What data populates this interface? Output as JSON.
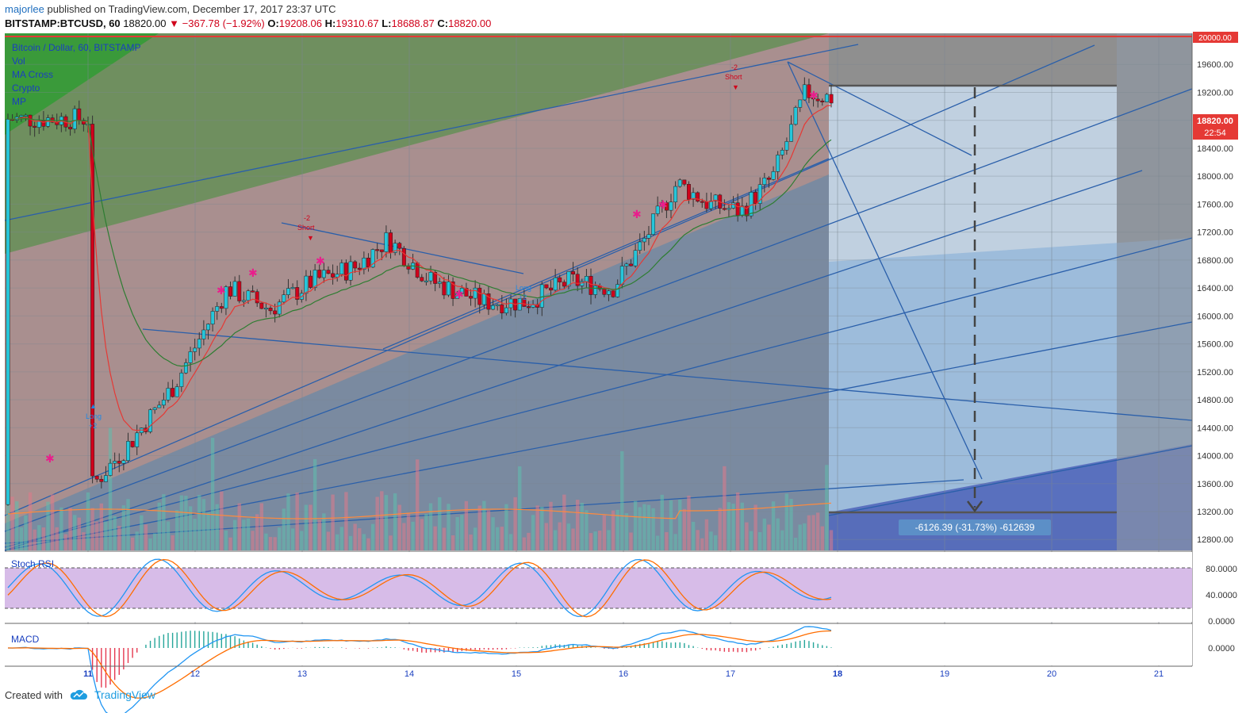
{
  "header": {
    "author": "majorlee",
    "published_text": "published on TradingView.com, December 17, 2017 23:37 UTC",
    "symbol": "BITSTAMP:BTCUSD, 60",
    "last": "18820.00",
    "change": "−367.78 (−1.92%)",
    "open_label": "O:",
    "open": "19208.06",
    "high_label": "H:",
    "high": "19310.67",
    "low_label": "L:",
    "low": "18688.87",
    "close_label": "C:",
    "close": "18820.00"
  },
  "legend": {
    "title": "Bitcoin / Dollar, 60, BITSTAMP",
    "items": [
      "Vol",
      "MA Cross",
      "Crypto",
      "MP"
    ]
  },
  "price_axis": {
    "labels": [
      "20000.00",
      "19600.00",
      "19200.00",
      "18800.00",
      "18400.00",
      "18000.00",
      "17600.00",
      "17200.00",
      "16800.00",
      "16400.00",
      "16000.00",
      "15600.00",
      "15200.00",
      "14800.00",
      "14400.00",
      "14000.00",
      "13600.00",
      "13200.00",
      "12800.00"
    ],
    "current_price": "18820.00",
    "countdown": "22:54",
    "red_line_label": "20000.00"
  },
  "time_axis": {
    "labels": [
      "11",
      "12",
      "13",
      "14",
      "15",
      "16",
      "17",
      "18",
      "19",
      "20",
      "21"
    ],
    "bold": [
      "11",
      "18"
    ]
  },
  "measure": {
    "label": "-6126.39 (-31.73%) -612639"
  },
  "signals": [
    {
      "text1": "-2",
      "text2": "Short"
    },
    {
      "text1": "-2",
      "text2": "Short"
    },
    {
      "text1": "Long",
      "text2": "+2"
    },
    {
      "text1": "Long",
      "text2": "+2"
    }
  ],
  "stoch": {
    "title": "Stoch RSI",
    "labels": [
      "80.0000",
      "40.0000",
      "0.0000"
    ]
  },
  "macd": {
    "title": "MACD",
    "labels": [
      "0.0000"
    ]
  },
  "colors": {
    "up": "#26c6da",
    "down": "#d0021b",
    "ma_red": "#e53935",
    "ma_green": "#2e7d32",
    "marker": "#e91e8c",
    "trend": "#2a5faa",
    "red_line": "#e53935",
    "zone_blue": "#8fbbe3",
    "stoch_bg": "#c9a6e0",
    "rsi_blue": "#2196f3",
    "rsi_orange": "#ff6d00"
  },
  "footer": {
    "created_with": "Created with",
    "brand": "TradingView",
    "logo": "tradingview-cloud-icon"
  },
  "chart_data": {
    "type": "candlestick",
    "title": "Bitcoin / Dollar, 60, BITSTAMP",
    "x_labels": [
      "11",
      "12",
      "13",
      "14",
      "15",
      "16",
      "17",
      "18",
      "19",
      "20",
      "21"
    ],
    "y_range": [
      12600,
      20200
    ],
    "key_closes_approx": [
      {
        "x": "10 (start)",
        "close": 13500
      },
      {
        "x": "11",
        "close": 15000
      },
      {
        "x": "12",
        "close": 16400
      },
      {
        "x": "13",
        "close": 16600
      },
      {
        "x": "14",
        "close": 16400
      },
      {
        "x": "15",
        "close": 16800
      },
      {
        "x": "16",
        "close": 17600
      },
      {
        "x": "17",
        "close": 19100
      },
      {
        "x": "18 (last)",
        "close": 18820
      }
    ],
    "projection": {
      "from": 19310,
      "to": 13180,
      "change": "-6126.39 (-31.73%)"
    },
    "indicators": [
      "Vol",
      "MA Cross",
      "Crypto",
      "MP",
      "Stoch RSI",
      "MACD"
    ]
  }
}
